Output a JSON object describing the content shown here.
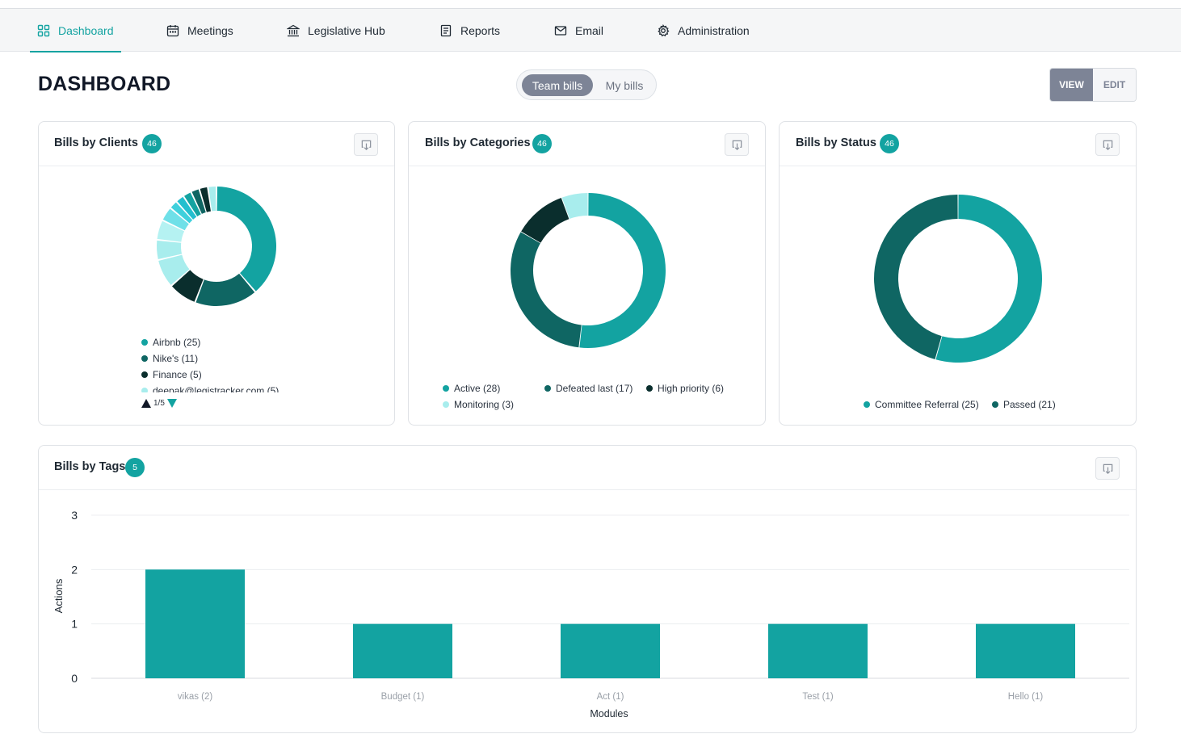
{
  "nav": {
    "items": [
      {
        "label": "Dashboard",
        "icon": "dashboard-icon",
        "active": true
      },
      {
        "label": "Meetings",
        "icon": "calendar-icon",
        "active": false
      },
      {
        "label": "Legislative Hub",
        "icon": "bank-icon",
        "active": false
      },
      {
        "label": "Reports",
        "icon": "document-icon",
        "active": false
      },
      {
        "label": "Email",
        "icon": "mail-icon",
        "active": false
      },
      {
        "label": "Administration",
        "icon": "gear-icon",
        "active": false
      }
    ]
  },
  "page_title": "DASHBOARD",
  "bill_toggle": {
    "selected": "Team bills",
    "other": "My bills"
  },
  "mode_toggle": {
    "selected": "VIEW",
    "other": "EDIT"
  },
  "colors": {
    "accent": "#13a3a1",
    "dark_teal": "#0f6663",
    "darkest": "#0a2e2d",
    "light": "#a8eded",
    "toggle_active": "#7d8496"
  },
  "cards": {
    "clients": {
      "title": "Bills by Clients",
      "count": "46",
      "download_icon": "download-icon"
    },
    "categories": {
      "title": "Bills by Categories",
      "count": "46",
      "download_icon": "download-icon"
    },
    "status": {
      "title": "Bills by Status",
      "count": "46",
      "download_icon": "download-icon"
    },
    "tags": {
      "title": "Bills by Tags",
      "count": "5",
      "download_icon": "download-icon"
    }
  },
  "clients_legend": {
    "items": [
      "Airbnb (25)",
      "Nike's (11)",
      "Finance (5)",
      "deepak@legistracker.com (5)"
    ],
    "pager": "1/5"
  },
  "categories_legend": {
    "items": [
      "Active (28)",
      "Defeated last (17)",
      "High priority (6)",
      "Monitoring (3)"
    ]
  },
  "status_legend": {
    "items": [
      "Committee Referral (25)",
      "Passed (21)"
    ]
  },
  "chart_data": [
    {
      "type": "pie",
      "name": "Bills by Clients",
      "labels": [
        "Airbnb",
        "Nike's",
        "Finance",
        "deepak@legistracker.com"
      ],
      "values": [
        25,
        11,
        5,
        5
      ],
      "colors": [
        "#13a3a1",
        "#0f6663",
        "#0a2e2d",
        "#a8eded"
      ]
    },
    {
      "type": "pie",
      "name": "Bills by Categories",
      "labels": [
        "Active",
        "Defeated last",
        "High priority",
        "Monitoring"
      ],
      "values": [
        28,
        17,
        6,
        3
      ],
      "colors": [
        "#13a3a1",
        "#0f6663",
        "#0a2e2d",
        "#a8eded"
      ]
    },
    {
      "type": "pie",
      "name": "Bills by Status",
      "labels": [
        "Committee Referral",
        "Passed"
      ],
      "values": [
        25,
        21
      ],
      "colors": [
        "#13a3a1",
        "#0f6663"
      ]
    },
    {
      "type": "bar",
      "name": "Bills by Tags",
      "categories": [
        "vikas (2)",
        "Budget (1)",
        "Act (1)",
        "Test (1)",
        "Hello (1)"
      ],
      "values": [
        2,
        1,
        1,
        1,
        1
      ],
      "xlabel": "Modules",
      "ylabel": "Actions",
      "ylim": [
        0,
        3
      ],
      "yticks": [
        0,
        1,
        2,
        3
      ],
      "color": "#13a3a1",
      "grid": true
    }
  ]
}
